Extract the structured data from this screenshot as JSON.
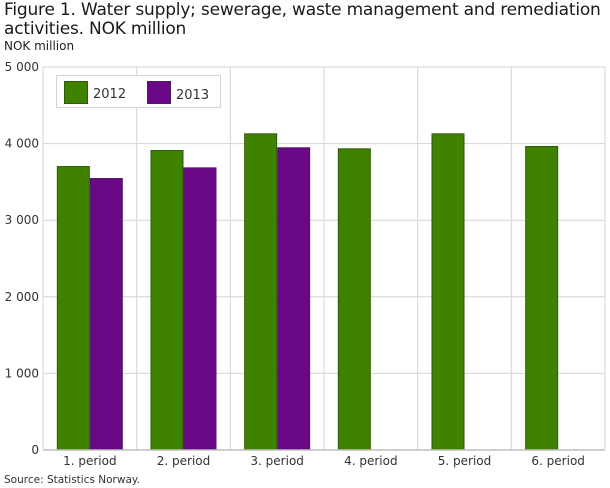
{
  "chart_data": {
    "type": "bar",
    "title": "Figure 1. Water supply; sewerage, waste management and remediation activities. NOK million",
    "ylabel": "NOK million",
    "xlabel": "",
    "categories": [
      "1. period",
      "2. period",
      "3. period",
      "4. period",
      "5. period",
      "6. period"
    ],
    "series": [
      {
        "name": "2012",
        "color": "#3e8200",
        "border": "#2d5a0a",
        "values": [
          3707,
          3916,
          4134,
          3938,
          4134,
          3969
        ]
      },
      {
        "name": "2013",
        "color": "#6a0786",
        "border": "#4d1a5e",
        "values": [
          3551,
          3690,
          3952,
          null,
          null,
          null
        ]
      }
    ],
    "ylim": [
      0,
      5000
    ],
    "yticks": [
      0,
      1000,
      2000,
      3000,
      4000,
      5000
    ],
    "ytick_labels": [
      "0",
      "1 000",
      "2 000",
      "3 000",
      "4 000",
      "5 000"
    ],
    "grid": true,
    "legend_position": "top-left",
    "source": "Source: Statistics Norway."
  }
}
